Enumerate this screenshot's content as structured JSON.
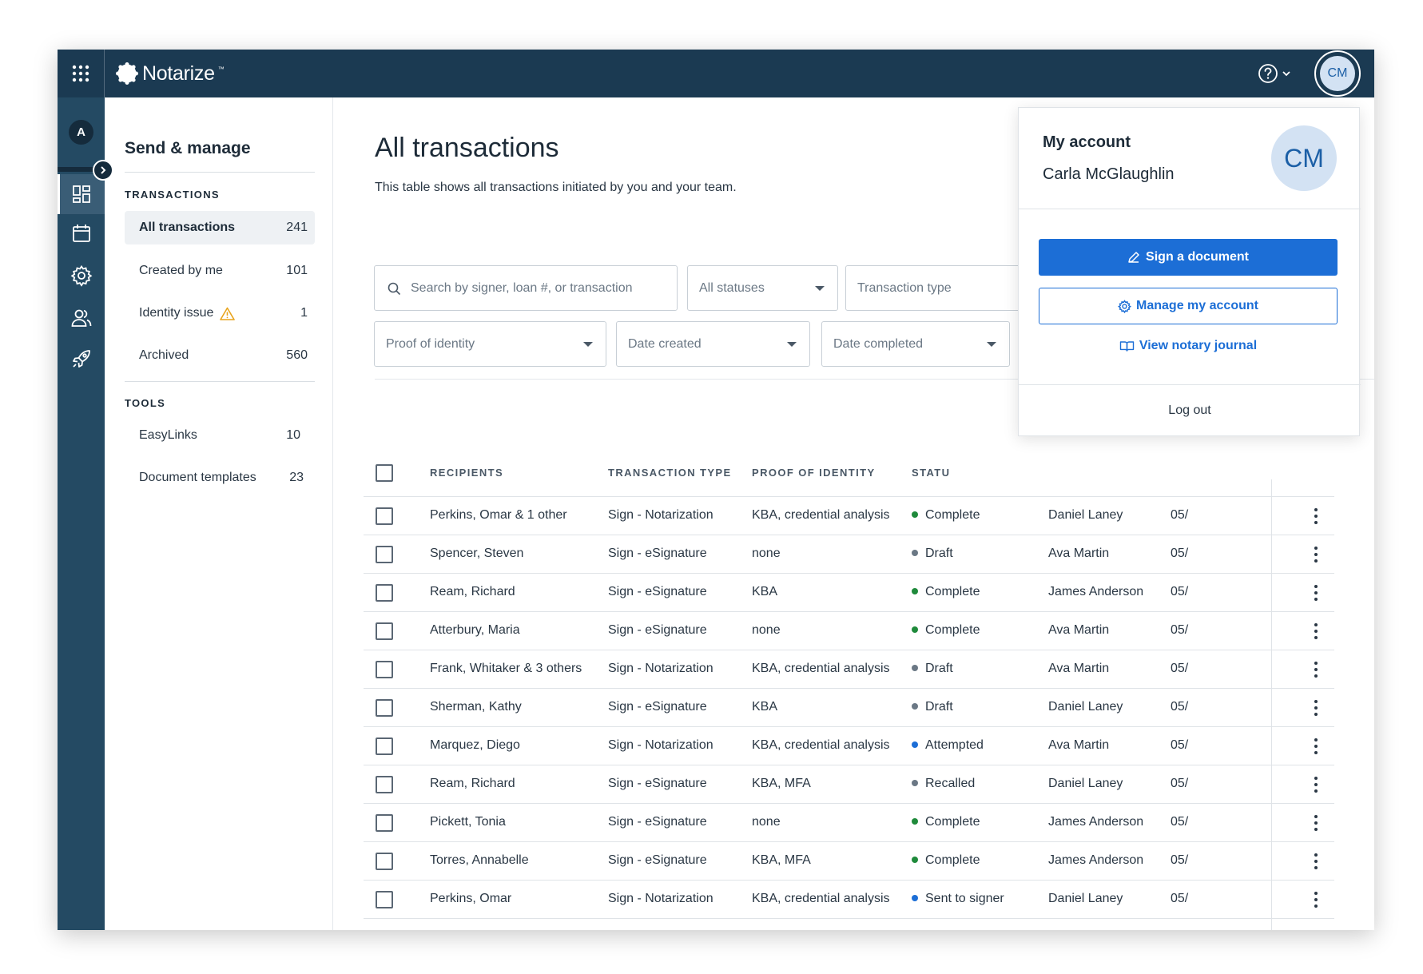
{
  "topbar": {
    "brand": "Notarize",
    "trademark": "™",
    "avatar_initials": "CM"
  },
  "rail": {
    "org_initial": "A",
    "items": [
      "dashboard-icon",
      "calendar-icon",
      "gear-icon",
      "users-icon",
      "rocket-icon"
    ]
  },
  "subnav": {
    "title": "Send & manage",
    "transactions_heading": "TRANSACTIONS",
    "transactions": [
      {
        "label": "All transactions",
        "count": "241"
      },
      {
        "label": "Created by me",
        "count": "101"
      },
      {
        "label": "Identity issue",
        "count": "1"
      },
      {
        "label": "Archived",
        "count": "560"
      }
    ],
    "tools_heading": "TOOLS",
    "tools": [
      {
        "label": "EasyLinks",
        "count": "10"
      },
      {
        "label": "Document templates",
        "count": "23"
      }
    ]
  },
  "main": {
    "title": "All transactions",
    "description": "This table shows all transactions initiated by you and your team.",
    "filters": {
      "search_placeholder": "Search by signer, loan #, or transaction",
      "status": "All statuses",
      "transaction_type": "Transaction type",
      "proof_of_identity": "Proof of identity",
      "date_created": "Date created",
      "date_completed": "Date completed"
    }
  },
  "table": {
    "headers": [
      "RECIPIENTS",
      "TRANSACTION TYPE",
      "PROOF OF IDENTITY",
      "STATU"
    ],
    "rows": [
      {
        "recipient": "Perkins, Omar & 1 other",
        "type": "Sign - Notarization",
        "proof": "KBA, credential analysis",
        "status": "Complete",
        "owner": "Daniel Laney",
        "date": "05/"
      },
      {
        "recipient": "Spencer, Steven",
        "type": "Sign - eSignature",
        "proof": "none",
        "status": "Draft",
        "owner": "Ava Martin",
        "date": "05/"
      },
      {
        "recipient": "Ream, Richard",
        "type": "Sign - eSignature",
        "proof": "KBA",
        "status": "Complete",
        "owner": "James Anderson",
        "date": "05/"
      },
      {
        "recipient": "Atterbury, Maria",
        "type": "Sign - eSignature",
        "proof": "none",
        "status": "Complete",
        "owner": "Ava Martin",
        "date": "05/"
      },
      {
        "recipient": "Frank, Whitaker & 3 others",
        "type": "Sign - Notarization",
        "proof": "KBA, credential analysis",
        "status": "Draft",
        "owner": "Ava Martin",
        "date": "05/"
      },
      {
        "recipient": "Sherman, Kathy",
        "type": "Sign - eSignature",
        "proof": "KBA",
        "status": "Draft",
        "owner": "Daniel Laney",
        "date": "05/"
      },
      {
        "recipient": "Marquez, Diego",
        "type": "Sign - Notarization",
        "proof": "KBA, credential analysis",
        "status": "Attempted",
        "owner": "Ava Martin",
        "date": "05/"
      },
      {
        "recipient": "Ream, Richard",
        "type": "Sign - eSignature",
        "proof": "KBA, MFA",
        "status": "Recalled",
        "owner": "Daniel Laney",
        "date": "05/"
      },
      {
        "recipient": "Pickett, Tonia",
        "type": "Sign - eSignature",
        "proof": "none",
        "status": "Complete",
        "owner": "James Anderson",
        "date": "05/"
      },
      {
        "recipient": "Torres, Annabelle",
        "type": "Sign - eSignature",
        "proof": "KBA, MFA",
        "status": "Complete",
        "owner": "James Anderson",
        "date": "05/"
      },
      {
        "recipient": "Perkins, Omar",
        "type": "Sign - Notarization",
        "proof": "KBA, credential analysis",
        "status": "Sent to signer",
        "owner": "Daniel Laney",
        "date": "05/"
      }
    ]
  },
  "status_colors": {
    "Complete": "#1f8a3b",
    "Draft": "#6b7885",
    "Attempted": "#1c6ed6",
    "Recalled": "#6b7885",
    "Sent to signer": "#1c6ed6"
  },
  "account": {
    "title": "My account",
    "name": "Carla McGlaughlin",
    "initials": "CM",
    "sign_label": "Sign a document",
    "manage_label": "Manage my account",
    "journal_label": "View notary journal",
    "logout_label": "Log out"
  },
  "colors": {
    "nav_dark": "#1b3a52",
    "rail": "#244a63",
    "accent": "#1c6ed6"
  }
}
